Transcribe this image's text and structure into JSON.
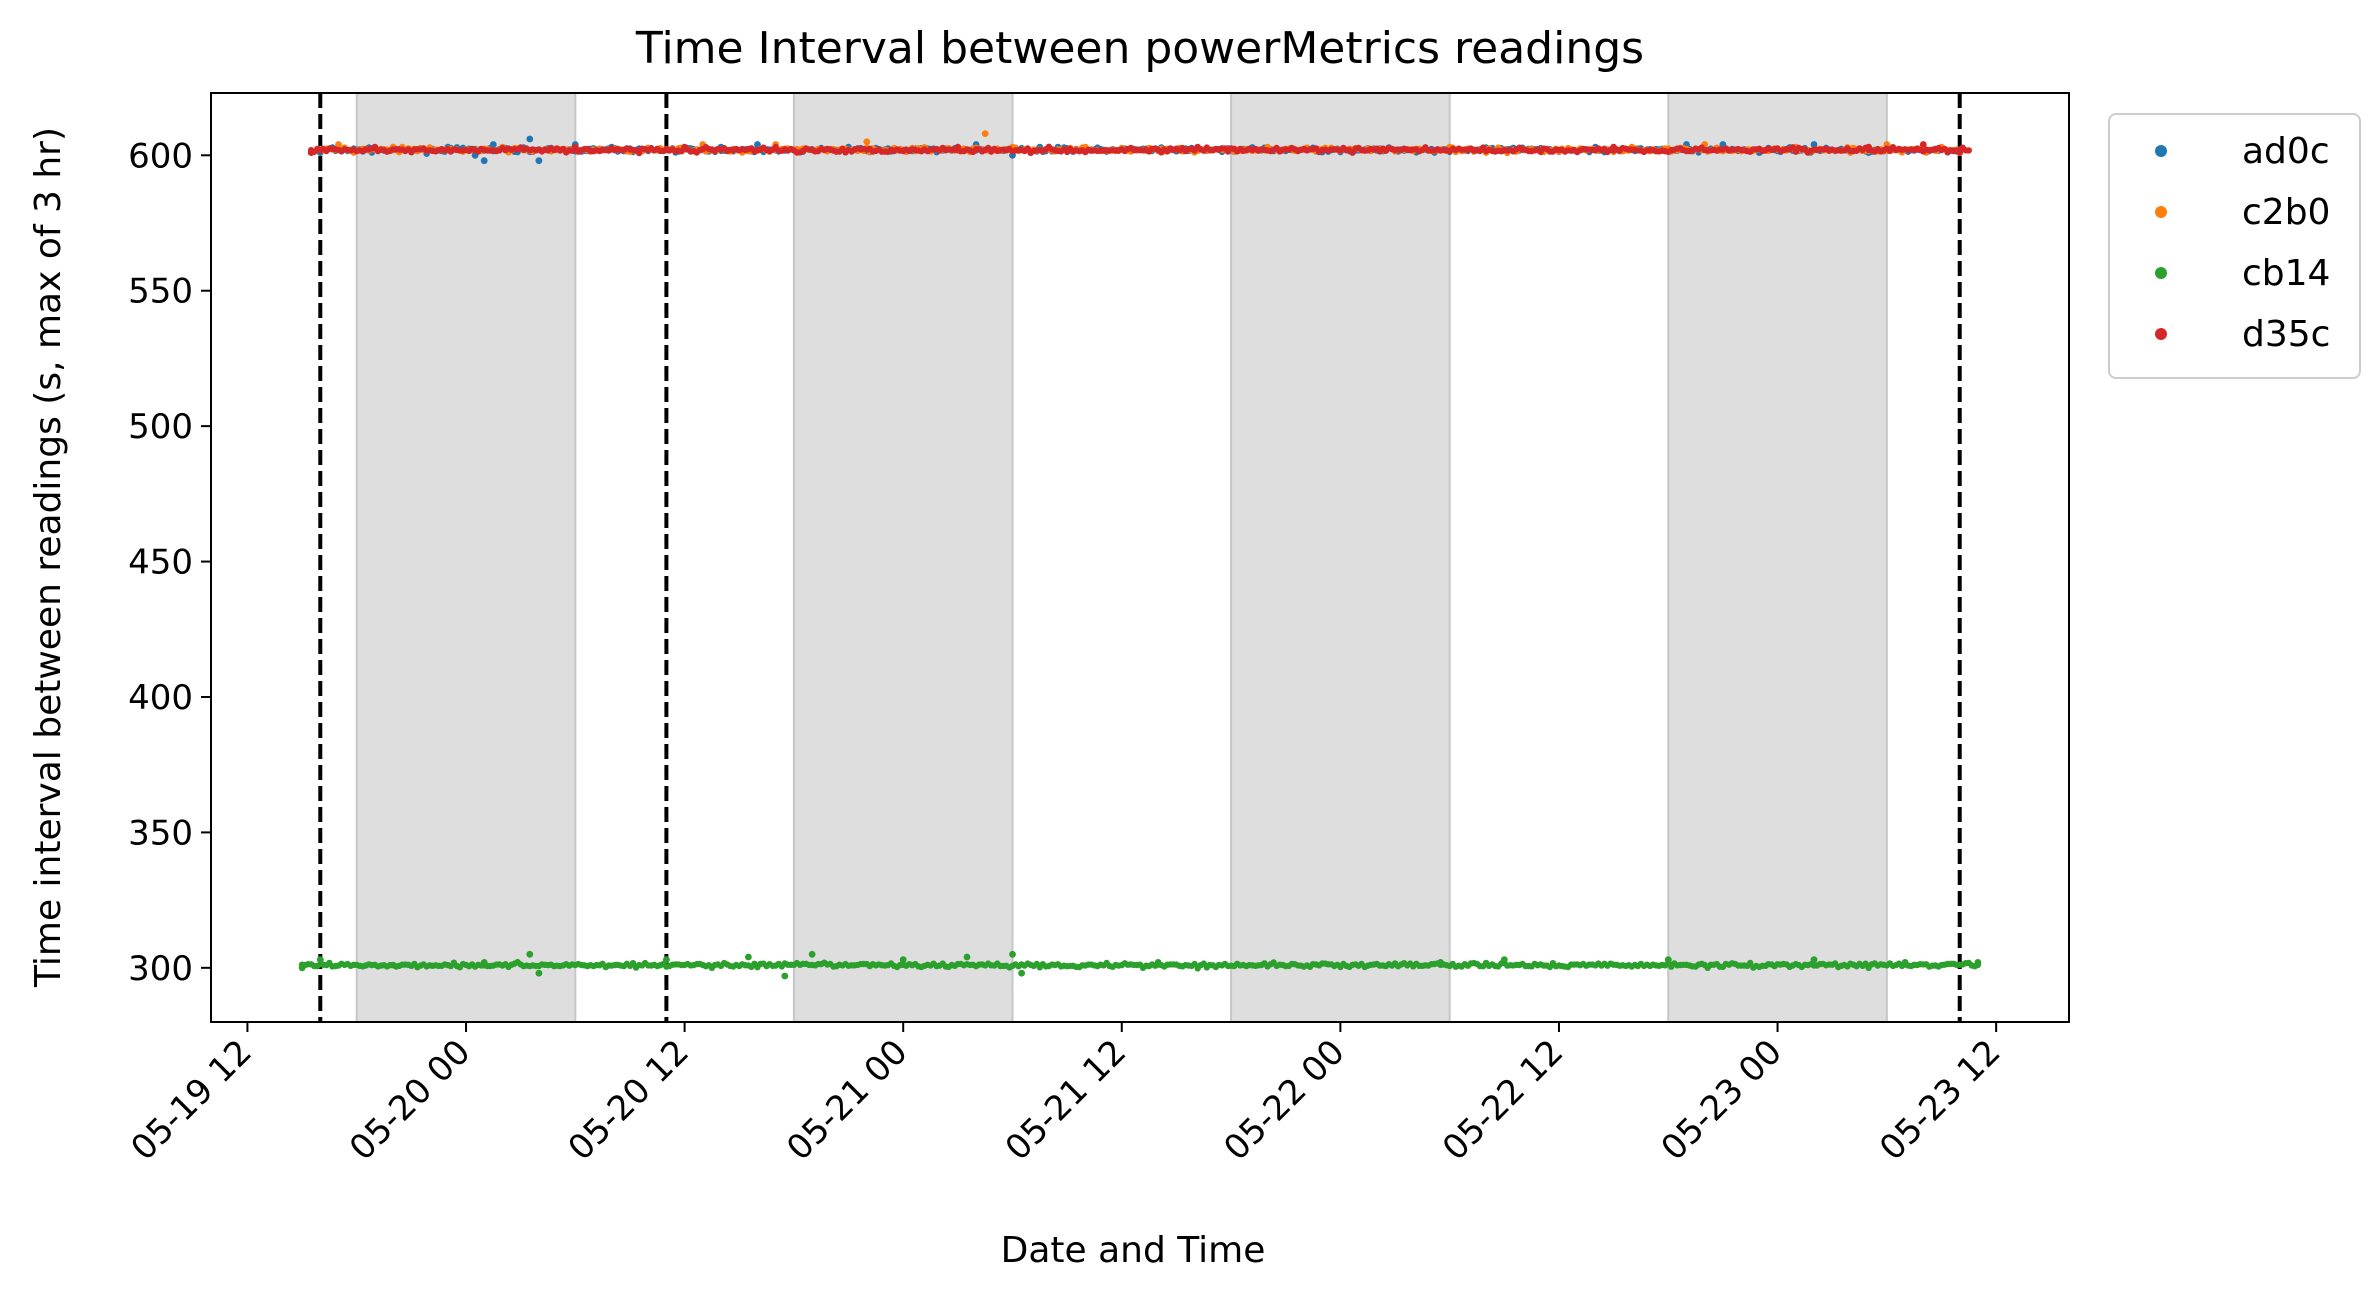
{
  "chart_data": {
    "type": "scatter",
    "title": "Time Interval between powerMetrics readings",
    "xlabel": "Date and Time",
    "ylabel": "Time interval between readings (s, max of 3 hr)",
    "x_type": "datetime",
    "xlim": [
      "2023-05-19 10:00",
      "2023-05-23 16:00"
    ],
    "ylim": [
      280,
      623
    ],
    "x_ticks": [
      {
        "value": "2023-05-19 12:00",
        "label": "05-19 12"
      },
      {
        "value": "2023-05-20 00:00",
        "label": "05-20 00"
      },
      {
        "value": "2023-05-20 12:00",
        "label": "05-20 12"
      },
      {
        "value": "2023-05-21 00:00",
        "label": "05-21 00"
      },
      {
        "value": "2023-05-21 12:00",
        "label": "05-21 12"
      },
      {
        "value": "2023-05-22 00:00",
        "label": "05-22 00"
      },
      {
        "value": "2023-05-22 12:00",
        "label": "05-22 12"
      },
      {
        "value": "2023-05-23 00:00",
        "label": "05-23 00"
      },
      {
        "value": "2023-05-23 12:00",
        "label": "05-23 12"
      }
    ],
    "y_ticks": [
      300,
      350,
      400,
      450,
      500,
      550,
      600
    ],
    "grid": false,
    "legend_position": "outside-top-right",
    "shaded_periods": [
      {
        "start": "2023-05-19 18:00",
        "end": "2023-05-20 06:00"
      },
      {
        "start": "2023-05-20 18:00",
        "end": "2023-05-21 06:00"
      },
      {
        "start": "2023-05-21 18:00",
        "end": "2023-05-22 06:00"
      },
      {
        "start": "2023-05-22 18:00",
        "end": "2023-05-23 06:00"
      }
    ],
    "vertical_dashed_lines": [
      "2023-05-19 16:00",
      "2023-05-20 11:00",
      "2023-05-23 10:00"
    ],
    "series": [
      {
        "name": "ad0c",
        "color": "#1f77b4",
        "x_start": "2023-05-19 16:00",
        "x_end": "2023-05-23 10:00",
        "typical_value": 602,
        "points": [
          [
            "2023-05-19 16:00",
            601
          ],
          [
            "2023-05-19 20:00",
            602
          ],
          [
            "2023-05-19 23:00",
            603
          ],
          [
            "2023-05-20 00:30",
            600
          ],
          [
            "2023-05-20 01:00",
            598
          ],
          [
            "2023-05-20 01:30",
            604
          ],
          [
            "2023-05-20 03:30",
            606
          ],
          [
            "2023-05-20 04:00",
            598
          ],
          [
            "2023-05-20 06:00",
            604
          ],
          [
            "2023-05-20 08:00",
            603
          ],
          [
            "2023-05-20 14:00",
            603
          ],
          [
            "2023-05-20 16:00",
            604
          ],
          [
            "2023-05-20 21:00",
            603
          ],
          [
            "2023-05-21 04:00",
            604
          ],
          [
            "2023-05-21 06:00",
            600
          ],
          [
            "2023-05-21 07:30",
            603
          ],
          [
            "2023-05-21 08:30",
            603
          ],
          [
            "2023-05-21 13:00",
            602
          ],
          [
            "2023-05-21 18:00",
            602
          ],
          [
            "2023-05-22 03:00",
            602
          ],
          [
            "2023-05-22 08:00",
            602
          ],
          [
            "2023-05-22 14:00",
            603
          ],
          [
            "2023-05-22 19:00",
            604
          ],
          [
            "2023-05-22 21:00",
            604
          ],
          [
            "2023-05-22 23:00",
            601
          ],
          [
            "2023-05-23 02:00",
            604
          ],
          [
            "2023-05-23 05:00",
            601
          ],
          [
            "2023-05-23 10:00",
            602
          ]
        ]
      },
      {
        "name": "c2b0",
        "color": "#ff7f0e",
        "x_start": "2023-05-19 16:00",
        "x_end": "2023-05-23 10:00",
        "typical_value": 602,
        "points": [
          [
            "2023-05-19 17:00",
            604
          ],
          [
            "2023-05-19 20:00",
            603
          ],
          [
            "2023-05-20 02:00",
            603
          ],
          [
            "2023-05-20 13:00",
            604
          ],
          [
            "2023-05-20 17:00",
            604
          ],
          [
            "2023-05-20 22:00",
            605
          ],
          [
            "2023-05-21 04:30",
            608
          ],
          [
            "2023-05-21 06:00",
            603
          ],
          [
            "2023-05-21 10:00",
            603
          ],
          [
            "2023-05-21 20:00",
            603
          ],
          [
            "2023-05-22 06:00",
            603
          ],
          [
            "2023-05-22 16:00",
            603
          ],
          [
            "2023-05-22 20:00",
            604
          ],
          [
            "2023-05-23 01:00",
            603
          ],
          [
            "2023-05-23 06:00",
            604
          ],
          [
            "2023-05-23 09:00",
            603
          ]
        ]
      },
      {
        "name": "cb14",
        "color": "#2ca02c",
        "x_start": "2023-05-19 15:00",
        "x_end": "2023-05-23 11:00",
        "typical_value": 301,
        "points": [
          [
            "2023-05-19 15:00",
            300
          ],
          [
            "2023-05-19 16:00",
            303
          ],
          [
            "2023-05-19 20:00",
            301
          ],
          [
            "2023-05-20 01:00",
            302
          ],
          [
            "2023-05-20 03:30",
            305
          ],
          [
            "2023-05-20 04:00",
            298
          ],
          [
            "2023-05-20 11:00",
            303
          ],
          [
            "2023-05-20 15:30",
            304
          ],
          [
            "2023-05-20 17:30",
            297
          ],
          [
            "2023-05-20 19:00",
            305
          ],
          [
            "2023-05-21 00:00",
            303
          ],
          [
            "2023-05-21 03:30",
            304
          ],
          [
            "2023-05-21 06:00",
            305
          ],
          [
            "2023-05-21 06:30",
            298
          ],
          [
            "2023-05-21 14:00",
            302
          ],
          [
            "2023-05-22 05:30",
            302
          ],
          [
            "2023-05-22 09:00",
            303
          ],
          [
            "2023-05-22 18:00",
            303
          ],
          [
            "2023-05-23 02:00",
            303
          ],
          [
            "2023-05-23 07:00",
            302
          ],
          [
            "2023-05-23 11:00",
            302
          ]
        ]
      },
      {
        "name": "d35c",
        "color": "#d62728",
        "x_start": "2023-05-19 15:30",
        "x_end": "2023-05-23 10:30",
        "typical_value": 602,
        "points": [
          [
            "2023-05-19 15:30",
            601
          ],
          [
            "2023-05-19 19:00",
            603
          ],
          [
            "2023-05-20 06:00",
            603
          ],
          [
            "2023-05-20 12:00",
            603
          ],
          [
            "2023-05-21 03:00",
            603
          ],
          [
            "2023-05-21 09:00",
            602
          ],
          [
            "2023-05-22 07:00",
            602
          ],
          [
            "2023-05-22 15:00",
            603
          ],
          [
            "2023-05-23 05:00",
            603
          ],
          [
            "2023-05-23 08:00",
            604
          ],
          [
            "2023-05-23 10:00",
            601
          ]
        ]
      }
    ]
  }
}
